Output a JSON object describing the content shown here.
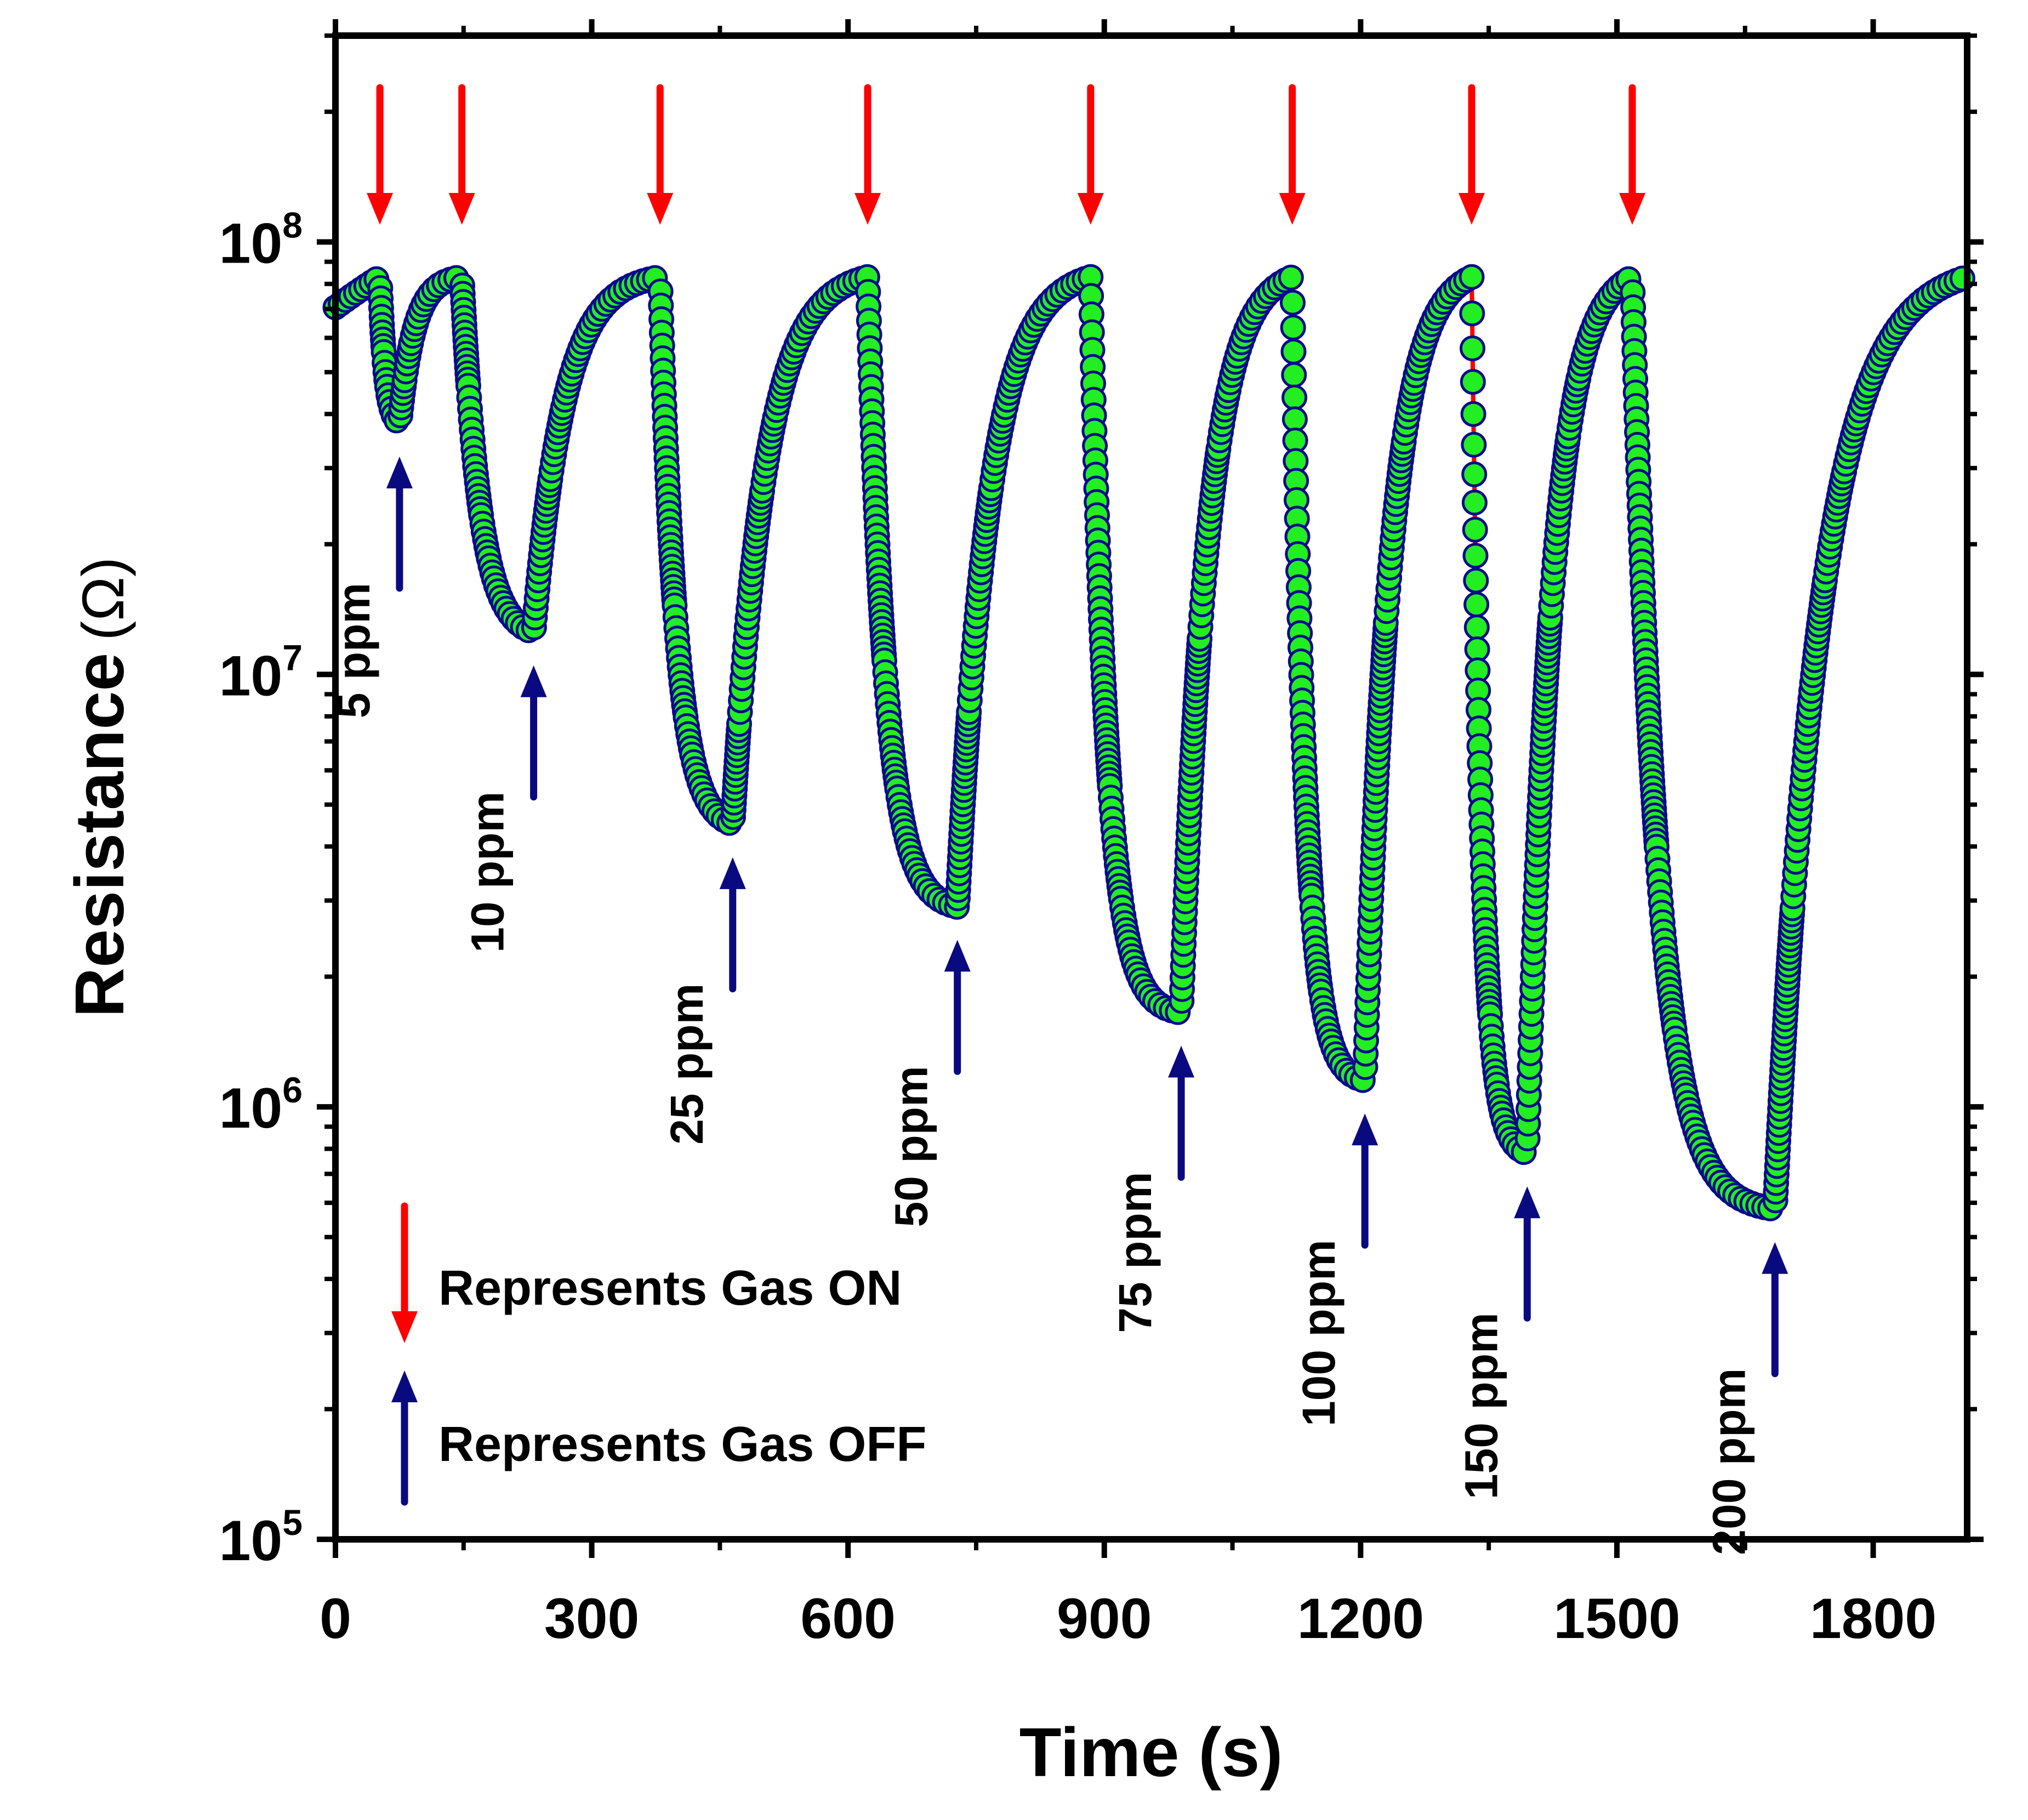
{
  "chart_data": {
    "type": "scatter",
    "title": "",
    "xlabel": "Time (s)",
    "ylabel_main": "Resistance",
    "ylabel_unit": "(Ω)",
    "xlim": [
      0,
      1910
    ],
    "ylim": [
      100000,
      300000000
    ],
    "yscale": "log",
    "xticks": [
      0,
      300,
      600,
      900,
      1200,
      1500,
      1800
    ],
    "xtick_labels": [
      "0",
      "300",
      "600",
      "900",
      "1200",
      "1500",
      "1800"
    ],
    "yticks": [
      {
        "value": 100000,
        "base": "10",
        "exp": "5"
      },
      {
        "value": 1000000,
        "base": "10",
        "exp": "6"
      },
      {
        "value": 10000000,
        "base": "10",
        "exp": "7"
      },
      {
        "value": 100000000,
        "base": "10",
        "exp": "8"
      }
    ],
    "baseline_resistance": 83000000,
    "colors": {
      "marker_fill": "#22ee22",
      "marker_edge": "#0a0a8a",
      "line": "#ff0000",
      "gas_on_arrow": "#ff0000",
      "gas_off_arrow": "#0a0a80"
    },
    "cycles": [
      {
        "label": "5 ppm",
        "on": 52,
        "off": 75,
        "min": 38000000
      },
      {
        "label": "10 ppm",
        "on": 148,
        "off": 232,
        "min": 12500000
      },
      {
        "label": "25 ppm",
        "on": 380,
        "off": 465,
        "min": 4500000
      },
      {
        "label": "50 ppm",
        "on": 623,
        "off": 728,
        "min": 2900000
      },
      {
        "label": "75 ppm",
        "on": 884,
        "off": 990,
        "min": 1650000
      },
      {
        "label": "100 ppm",
        "on": 1120,
        "off": 1205,
        "min": 1150000
      },
      {
        "label": "150 ppm",
        "on": 1330,
        "off": 1395,
        "min": 780000
      },
      {
        "label": "200 ppm",
        "on": 1518,
        "off": 1685,
        "min": 580000
      }
    ],
    "legend": [
      {
        "label": "Represents Gas ON",
        "arrow": "down",
        "color": "#ff0000"
      },
      {
        "label": "Represents Gas OFF",
        "arrow": "up",
        "color": "#0a0a80"
      }
    ]
  }
}
